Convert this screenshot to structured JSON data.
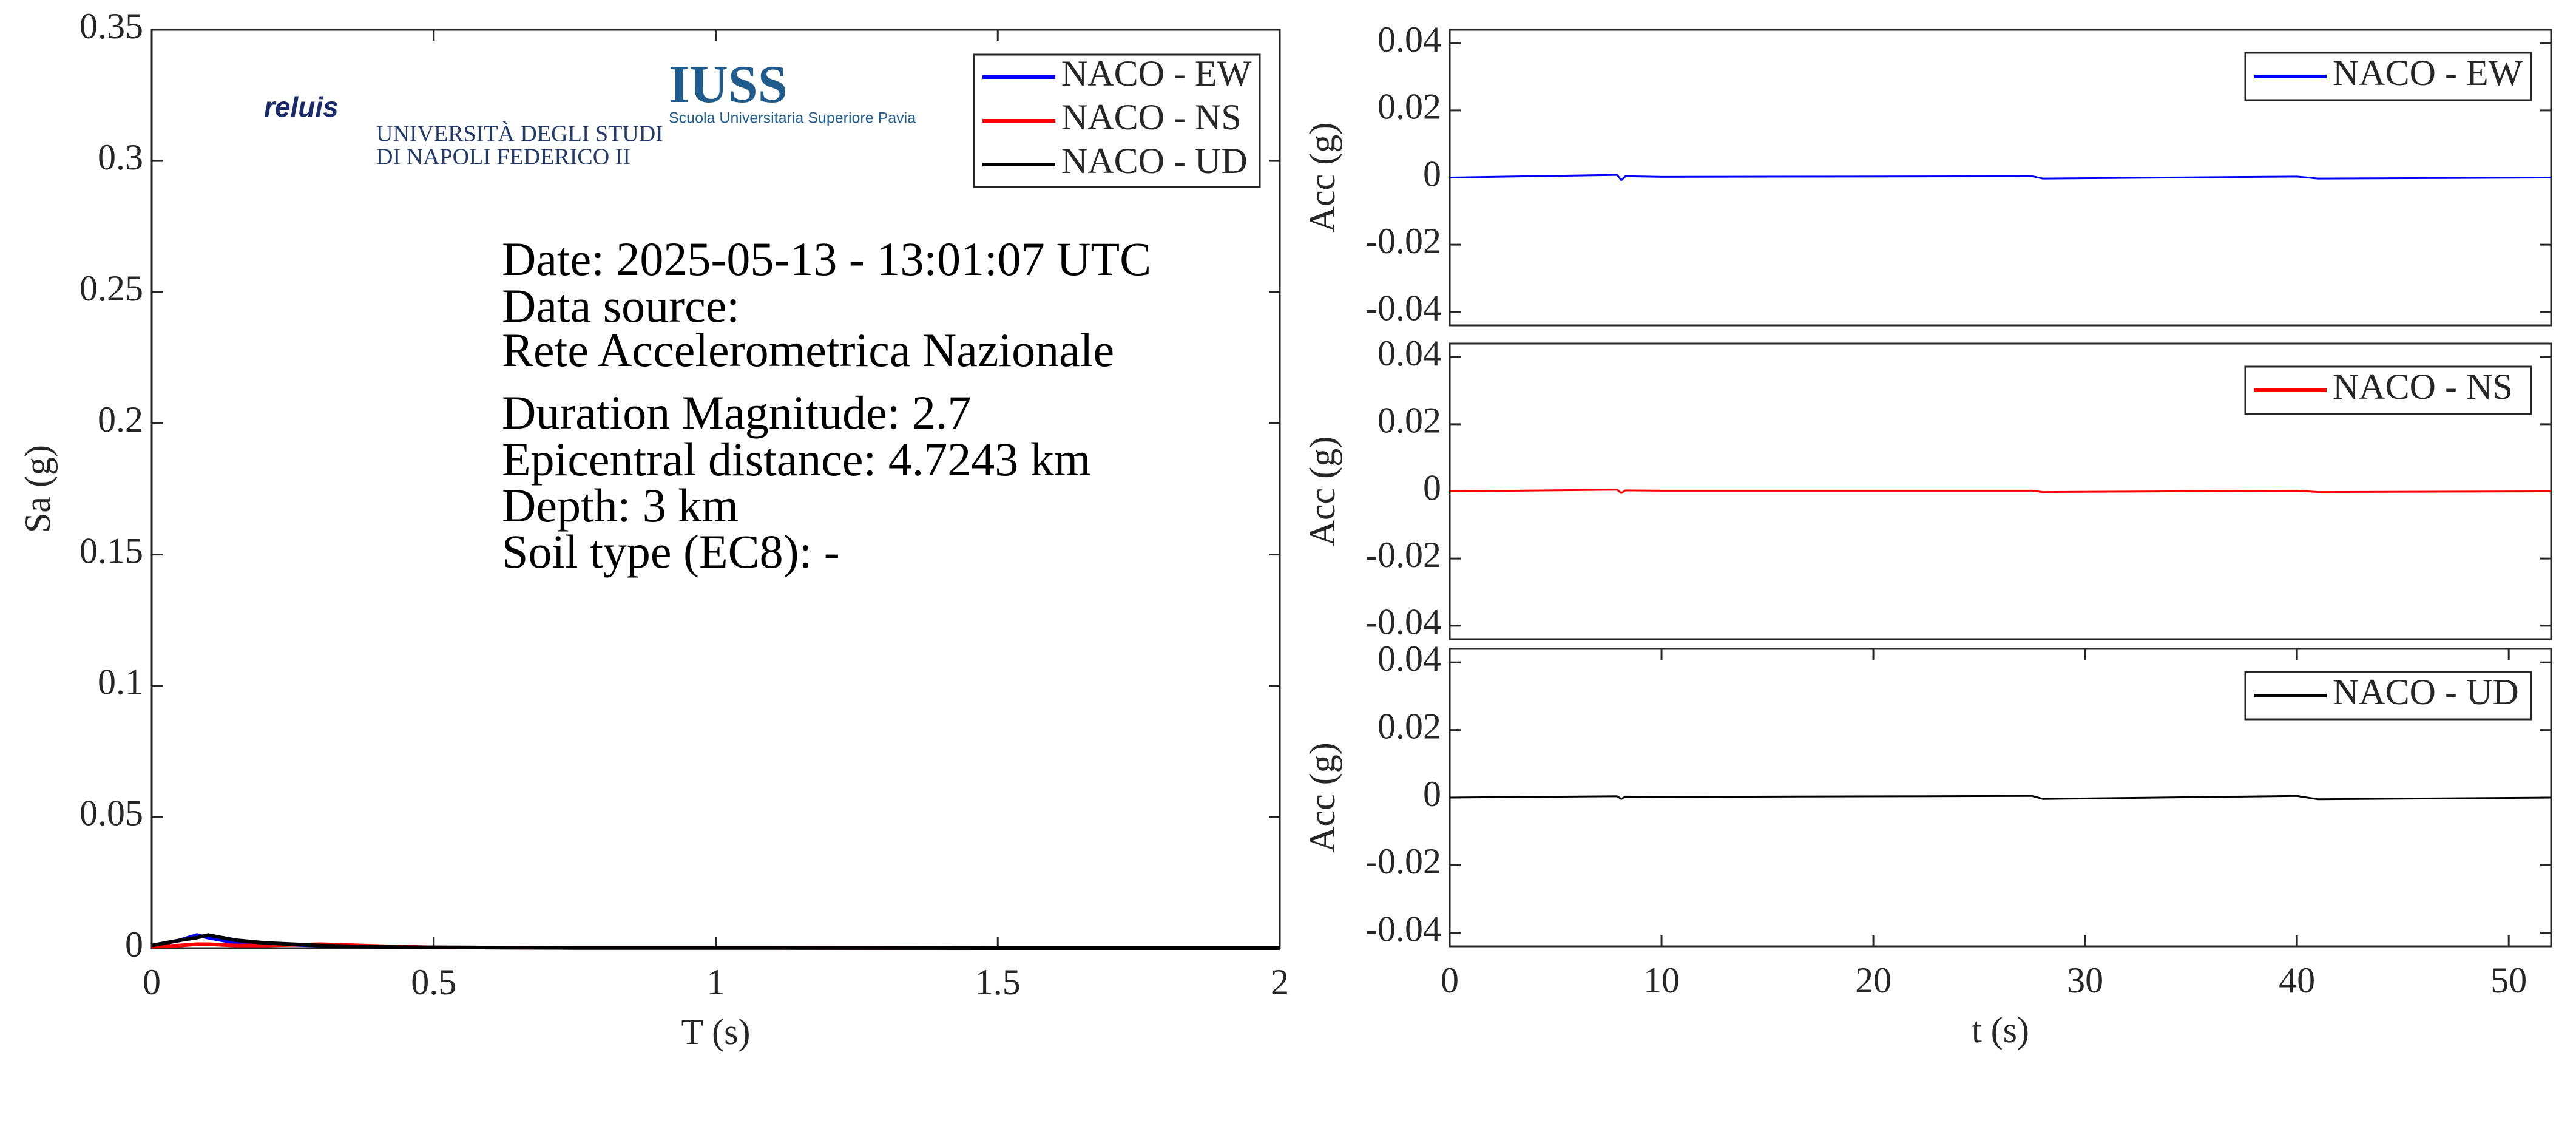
{
  "chart_data": [
    {
      "type": "line",
      "xlabel": "T (s)",
      "ylabel": "Sa (g)",
      "xlim": [
        0,
        2
      ],
      "xticks": [
        0,
        0.5,
        1,
        1.5,
        2
      ],
      "ylim": [
        0,
        0.35
      ],
      "yticks": [
        0,
        0.05,
        0.1,
        0.15,
        0.2,
        0.25,
        0.3,
        0.35
      ],
      "legend": "upper right",
      "annotations": [
        "Date: 2025-05-13 - 13:01:07 UTC",
        "Data source:",
        "Rete Accelerometrica Nazionale",
        "Duration Magnitude: 2.7",
        "Epicentral distance: 4.7243 km",
        "Depth: 3 km",
        "Soil type (EC8): -"
      ],
      "logos": [
        "reluis",
        "UNIVERSITÀ DEGLI STUDI",
        "DI NAPOLI FEDERICO II",
        "IUSS",
        "Scuola Universitaria Superiore Pavia"
      ],
      "x": [
        0,
        0.05,
        0.08,
        0.1,
        0.15,
        0.2,
        0.3,
        0.4,
        0.5,
        0.75,
        1,
        1.5,
        2
      ],
      "series": [
        {
          "name": "NACO - EW",
          "color": "#0000ff",
          "values": [
            0.001,
            0.003,
            0.005,
            0.004,
            0.002,
            0.0015,
            0.001,
            0.0005,
            0.0003,
            0.0001,
            0.0001,
            0,
            0
          ]
        },
        {
          "name": "NACO - NS",
          "color": "#ff0000",
          "values": [
            0.0005,
            0.001,
            0.0015,
            0.0015,
            0.001,
            0.001,
            0.0015,
            0.0008,
            0.0003,
            0.0001,
            0.0001,
            0,
            0
          ]
        },
        {
          "name": "NACO - UD",
          "color": "#000000",
          "values": [
            0.001,
            0.003,
            0.004,
            0.005,
            0.003,
            0.002,
            0.001,
            0.0005,
            0.0003,
            0.0001,
            0.0001,
            0,
            0
          ]
        }
      ]
    },
    {
      "type": "line",
      "ylabel": "Acc (g)",
      "xlim": [
        0,
        52
      ],
      "ylim": [
        -0.044,
        0.044
      ],
      "yticks": [
        -0.04,
        -0.02,
        0,
        0.02,
        0.04
      ],
      "legend": "upper right",
      "x": [
        0,
        7.9,
        8.1,
        8.3,
        10,
        27.5,
        28,
        40,
        41,
        52
      ],
      "series": [
        {
          "name": "NACO - EW",
          "color": "#0000ff",
          "values": [
            0,
            0.0008,
            -0.0008,
            0.0004,
            0.0002,
            0.0004,
            -0.0003,
            0.0003,
            -0.0003,
            0
          ]
        }
      ]
    },
    {
      "type": "line",
      "ylabel": "Acc (g)",
      "xlim": [
        0,
        52
      ],
      "ylim": [
        -0.044,
        0.044
      ],
      "yticks": [
        -0.04,
        -0.02,
        0,
        0.02,
        0.04
      ],
      "legend": "upper right",
      "x": [
        0,
        7.9,
        8.1,
        8.3,
        10,
        27.5,
        28,
        40,
        41,
        52
      ],
      "series": [
        {
          "name": "NACO - NS",
          "color": "#ff0000",
          "values": [
            0,
            0.0005,
            -0.0005,
            0.0003,
            0.0002,
            0.0002,
            -0.0002,
            0.0002,
            -0.0002,
            0
          ]
        }
      ]
    },
    {
      "type": "line",
      "ylabel": "Acc (g)",
      "xlabel": "t (s)",
      "xlim": [
        0,
        52
      ],
      "xticks": [
        0,
        10,
        20,
        30,
        40,
        50
      ],
      "ylim": [
        -0.044,
        0.044
      ],
      "yticks": [
        -0.04,
        -0.02,
        0,
        0.02,
        0.04
      ],
      "legend": "upper right",
      "x": [
        0,
        7.9,
        8.1,
        8.3,
        10,
        27.5,
        28,
        40,
        41,
        52
      ],
      "series": [
        {
          "name": "NACO - UD",
          "color": "#000000",
          "values": [
            0,
            0.0004,
            -0.0004,
            0.0003,
            0.0002,
            0.0005,
            -0.0004,
            0.0005,
            -0.0005,
            0
          ]
        }
      ]
    }
  ]
}
